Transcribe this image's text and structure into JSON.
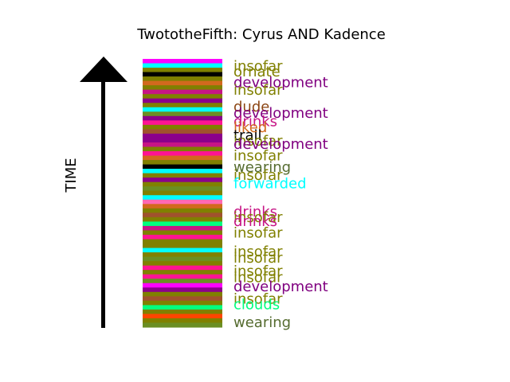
{
  "chart_data": {
    "type": "timeline",
    "title": "TwototheFifth: Cyrus AND Kadence",
    "ylabel": "TIME",
    "stripes": [
      {
        "color": "#FF00FF"
      },
      {
        "color": "#00FFFF"
      },
      {
        "color": "#808000"
      },
      {
        "color": "#000000"
      },
      {
        "color": "#808000"
      },
      {
        "color": "#D2691E"
      },
      {
        "color": "#808000"
      },
      {
        "color": "#C71585"
      },
      {
        "color": "#808000"
      },
      {
        "color": "#8B008B"
      },
      {
        "color": "#808000"
      },
      {
        "color": "#00FFFF"
      },
      {
        "color": "#6B8E23"
      },
      {
        "color": "#8B008B"
      },
      {
        "color": "#FF1493"
      },
      {
        "color": "#808000"
      },
      {
        "color": "#A0522D"
      },
      {
        "color": "#8B008B"
      },
      {
        "color": "#8B008B"
      },
      {
        "color": "#C71585"
      },
      {
        "color": "#808000"
      },
      {
        "color": "#FF1493"
      },
      {
        "color": "#D2691E"
      },
      {
        "color": "#808000"
      },
      {
        "color": "#000000"
      },
      {
        "color": "#00FFFF"
      },
      {
        "color": "#808000"
      },
      {
        "color": "#8B008B"
      },
      {
        "color": "#808000"
      },
      {
        "color": "#6B8E23"
      },
      {
        "color": "#808000"
      },
      {
        "color": "#00FFFF"
      },
      {
        "color": "#FF69B4"
      },
      {
        "color": "#D2691E"
      },
      {
        "color": "#808000"
      },
      {
        "color": "#A0522D"
      },
      {
        "color": "#808000"
      },
      {
        "color": "#00FF7F"
      },
      {
        "color": "#C71585"
      },
      {
        "color": "#808000"
      },
      {
        "color": "#FF1493"
      },
      {
        "color": "#808000"
      },
      {
        "color": "#808000"
      },
      {
        "color": "#00FFFF"
      },
      {
        "color": "#808000"
      },
      {
        "color": "#6B8E23"
      },
      {
        "color": "#808000"
      },
      {
        "color": "#FF1493"
      },
      {
        "color": "#808000"
      },
      {
        "color": "#FF1493"
      },
      {
        "color": "#6B8E23"
      },
      {
        "color": "#FF00FF"
      },
      {
        "color": "#8B008B"
      },
      {
        "color": "#808000"
      },
      {
        "color": "#A0522D"
      },
      {
        "color": "#808000"
      },
      {
        "color": "#00FF7F"
      },
      {
        "color": "#808000"
      },
      {
        "color": "#FF4500"
      },
      {
        "color": "#808000"
      },
      {
        "color": "#6B8E23"
      }
    ],
    "labels": [
      {
        "text": "insofar",
        "color": "#808000",
        "t": 0.973
      },
      {
        "text": "ornate",
        "color": "#808000",
        "t": 0.952
      },
      {
        "text": "development",
        "color": "#800080",
        "t": 0.912
      },
      {
        "text": "insofar",
        "color": "#808000",
        "t": 0.885
      },
      {
        "text": "dude",
        "color": "#8B4513",
        "t": 0.822
      },
      {
        "text": "development",
        "color": "#800080",
        "t": 0.798
      },
      {
        "text": "drinks",
        "color": "#C71585",
        "t": 0.767
      },
      {
        "text": "liked",
        "color": "#D2691E",
        "t": 0.745
      },
      {
        "text": "trail",
        "color": "#000000",
        "t": 0.715
      },
      {
        "text": "insofar",
        "color": "#808000",
        "t": 0.694
      },
      {
        "text": "development",
        "color": "#800080",
        "t": 0.682
      },
      {
        "text": "insofar",
        "color": "#808000",
        "t": 0.639
      },
      {
        "text": "wearing",
        "color": "#556B2F",
        "t": 0.597
      },
      {
        "text": "insofar",
        "color": "#808000",
        "t": 0.567
      },
      {
        "text": "forwarded",
        "color": "#00FFFF",
        "t": 0.536
      },
      {
        "text": "drinks",
        "color": "#C71585",
        "t": 0.43
      },
      {
        "text": "insofar",
        "color": "#808000",
        "t": 0.409
      },
      {
        "text": "drinks",
        "color": "#C71585",
        "t": 0.394
      },
      {
        "text": "insofar",
        "color": "#808000",
        "t": 0.352
      },
      {
        "text": "insofar",
        "color": "#808000",
        "t": 0.282
      },
      {
        "text": "insofar",
        "color": "#808000",
        "t": 0.258
      },
      {
        "text": "insofar",
        "color": "#808000",
        "t": 0.209
      },
      {
        "text": "insofar",
        "color": "#808000",
        "t": 0.185
      },
      {
        "text": "development",
        "color": "#800080",
        "t": 0.152
      },
      {
        "text": "insofar",
        "color": "#808000",
        "t": 0.106
      },
      {
        "text": "clouds",
        "color": "#00FF7F",
        "t": 0.085
      },
      {
        "text": "wearing",
        "color": "#556B2F",
        "t": 0.018
      }
    ]
  }
}
